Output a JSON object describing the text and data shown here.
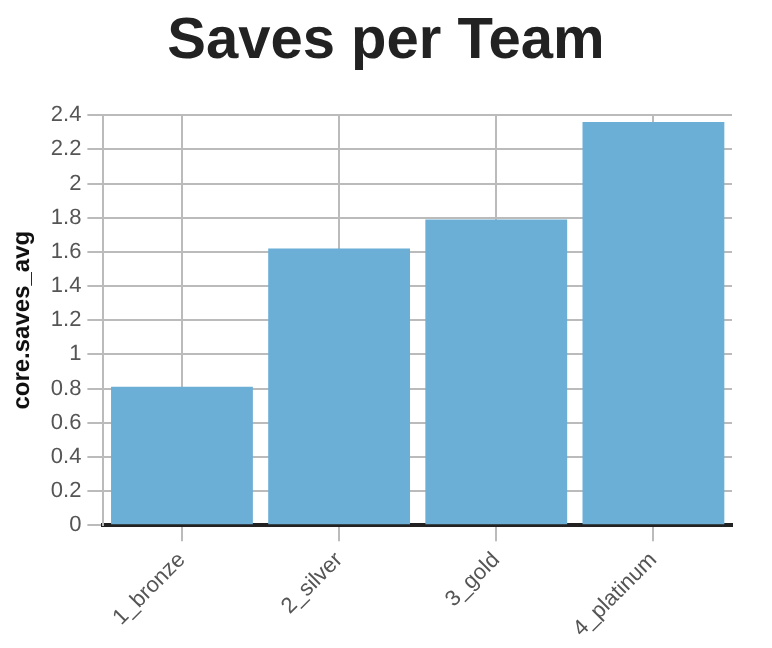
{
  "chart_data": {
    "type": "bar",
    "title": "Saves per Team",
    "ylabel": "core.saves_avg",
    "categories": [
      "1_bronze",
      "2_silver",
      "3_gold",
      "4_platinum"
    ],
    "values": [
      0.81,
      1.62,
      1.79,
      2.36
    ],
    "color": "#6baed6",
    "ylim": [
      0,
      2.4
    ],
    "yticks": [
      0,
      0.2,
      0.4,
      0.6,
      0.8,
      1,
      1.2,
      1.4,
      1.6,
      1.8,
      2,
      2.2,
      2.4
    ],
    "grid": true,
    "legend": false
  }
}
